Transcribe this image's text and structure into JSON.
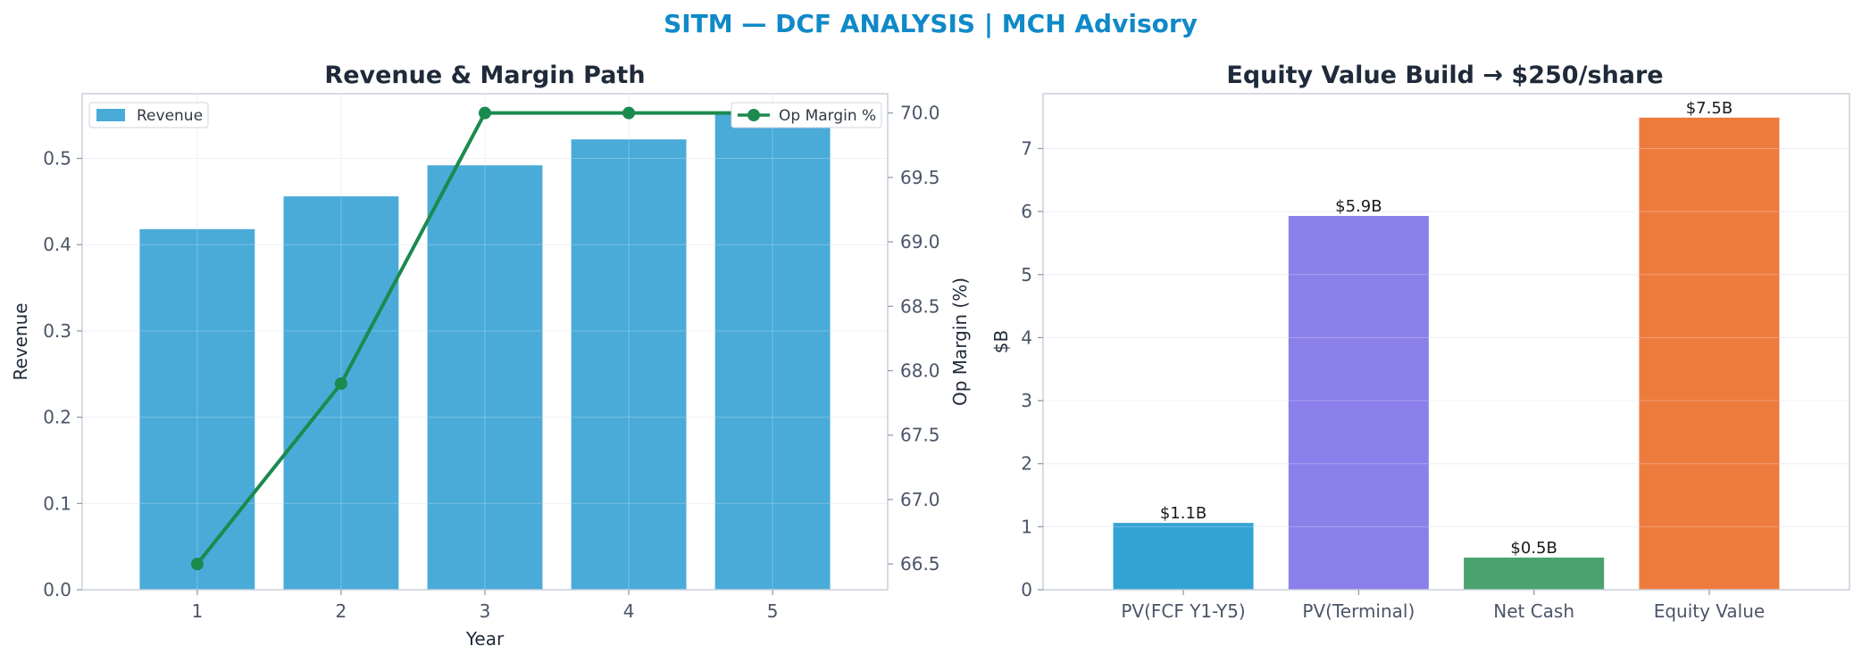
{
  "suptitle": "SITM — DCF ANALYSIS | MCH Advisory",
  "chart_data": [
    {
      "type": "bar",
      "title": "Revenue & Margin Path",
      "xlabel": "Year",
      "ylabel": "Revenue",
      "categories": [
        "1",
        "2",
        "3",
        "4",
        "5"
      ],
      "ylim": [
        0,
        0.575
      ],
      "yticks": [
        0.0,
        0.1,
        0.2,
        0.3,
        0.4,
        0.5
      ],
      "series": [
        {
          "name": "Revenue",
          "type": "bar",
          "values": [
            0.418,
            0.456,
            0.492,
            0.522,
            0.553
          ],
          "color": "#4aabd9"
        }
      ],
      "secondary_axis": {
        "type": "line",
        "ylabel": "Op Margin (%)",
        "ylim": [
          66.3,
          70.15
        ],
        "yticks": [
          66.5,
          67.0,
          67.5,
          68.0,
          68.5,
          69.0,
          69.5,
          70.0
        ],
        "series": [
          {
            "name": "Op Margin %",
            "values": [
              66.5,
              67.9,
              70.0,
              70.0,
              70.0
            ],
            "color": "#1b8a4e"
          }
        ]
      },
      "legend": [
        "upper-left",
        "upper-right"
      ],
      "grid": true
    },
    {
      "type": "bar",
      "title": "Equity Value Build → $250/share",
      "xlabel": "",
      "ylabel": "$B",
      "categories": [
        "PV(FCF Y1-Y5)",
        "PV(Terminal)",
        "Net Cash",
        "Equity Value"
      ],
      "values": [
        1.06,
        5.93,
        0.51,
        7.49
      ],
      "data_labels": [
        "$1.1B",
        "$5.9B",
        "$0.5B",
        "$7.5B"
      ],
      "colors": [
        "#33a3d4",
        "#8b7fea",
        "#4aa36e",
        "#ee7b3e"
      ],
      "ylim": [
        0,
        7.87
      ],
      "yticks": [
        0,
        1,
        2,
        3,
        4,
        5,
        6,
        7
      ],
      "grid": true
    }
  ]
}
